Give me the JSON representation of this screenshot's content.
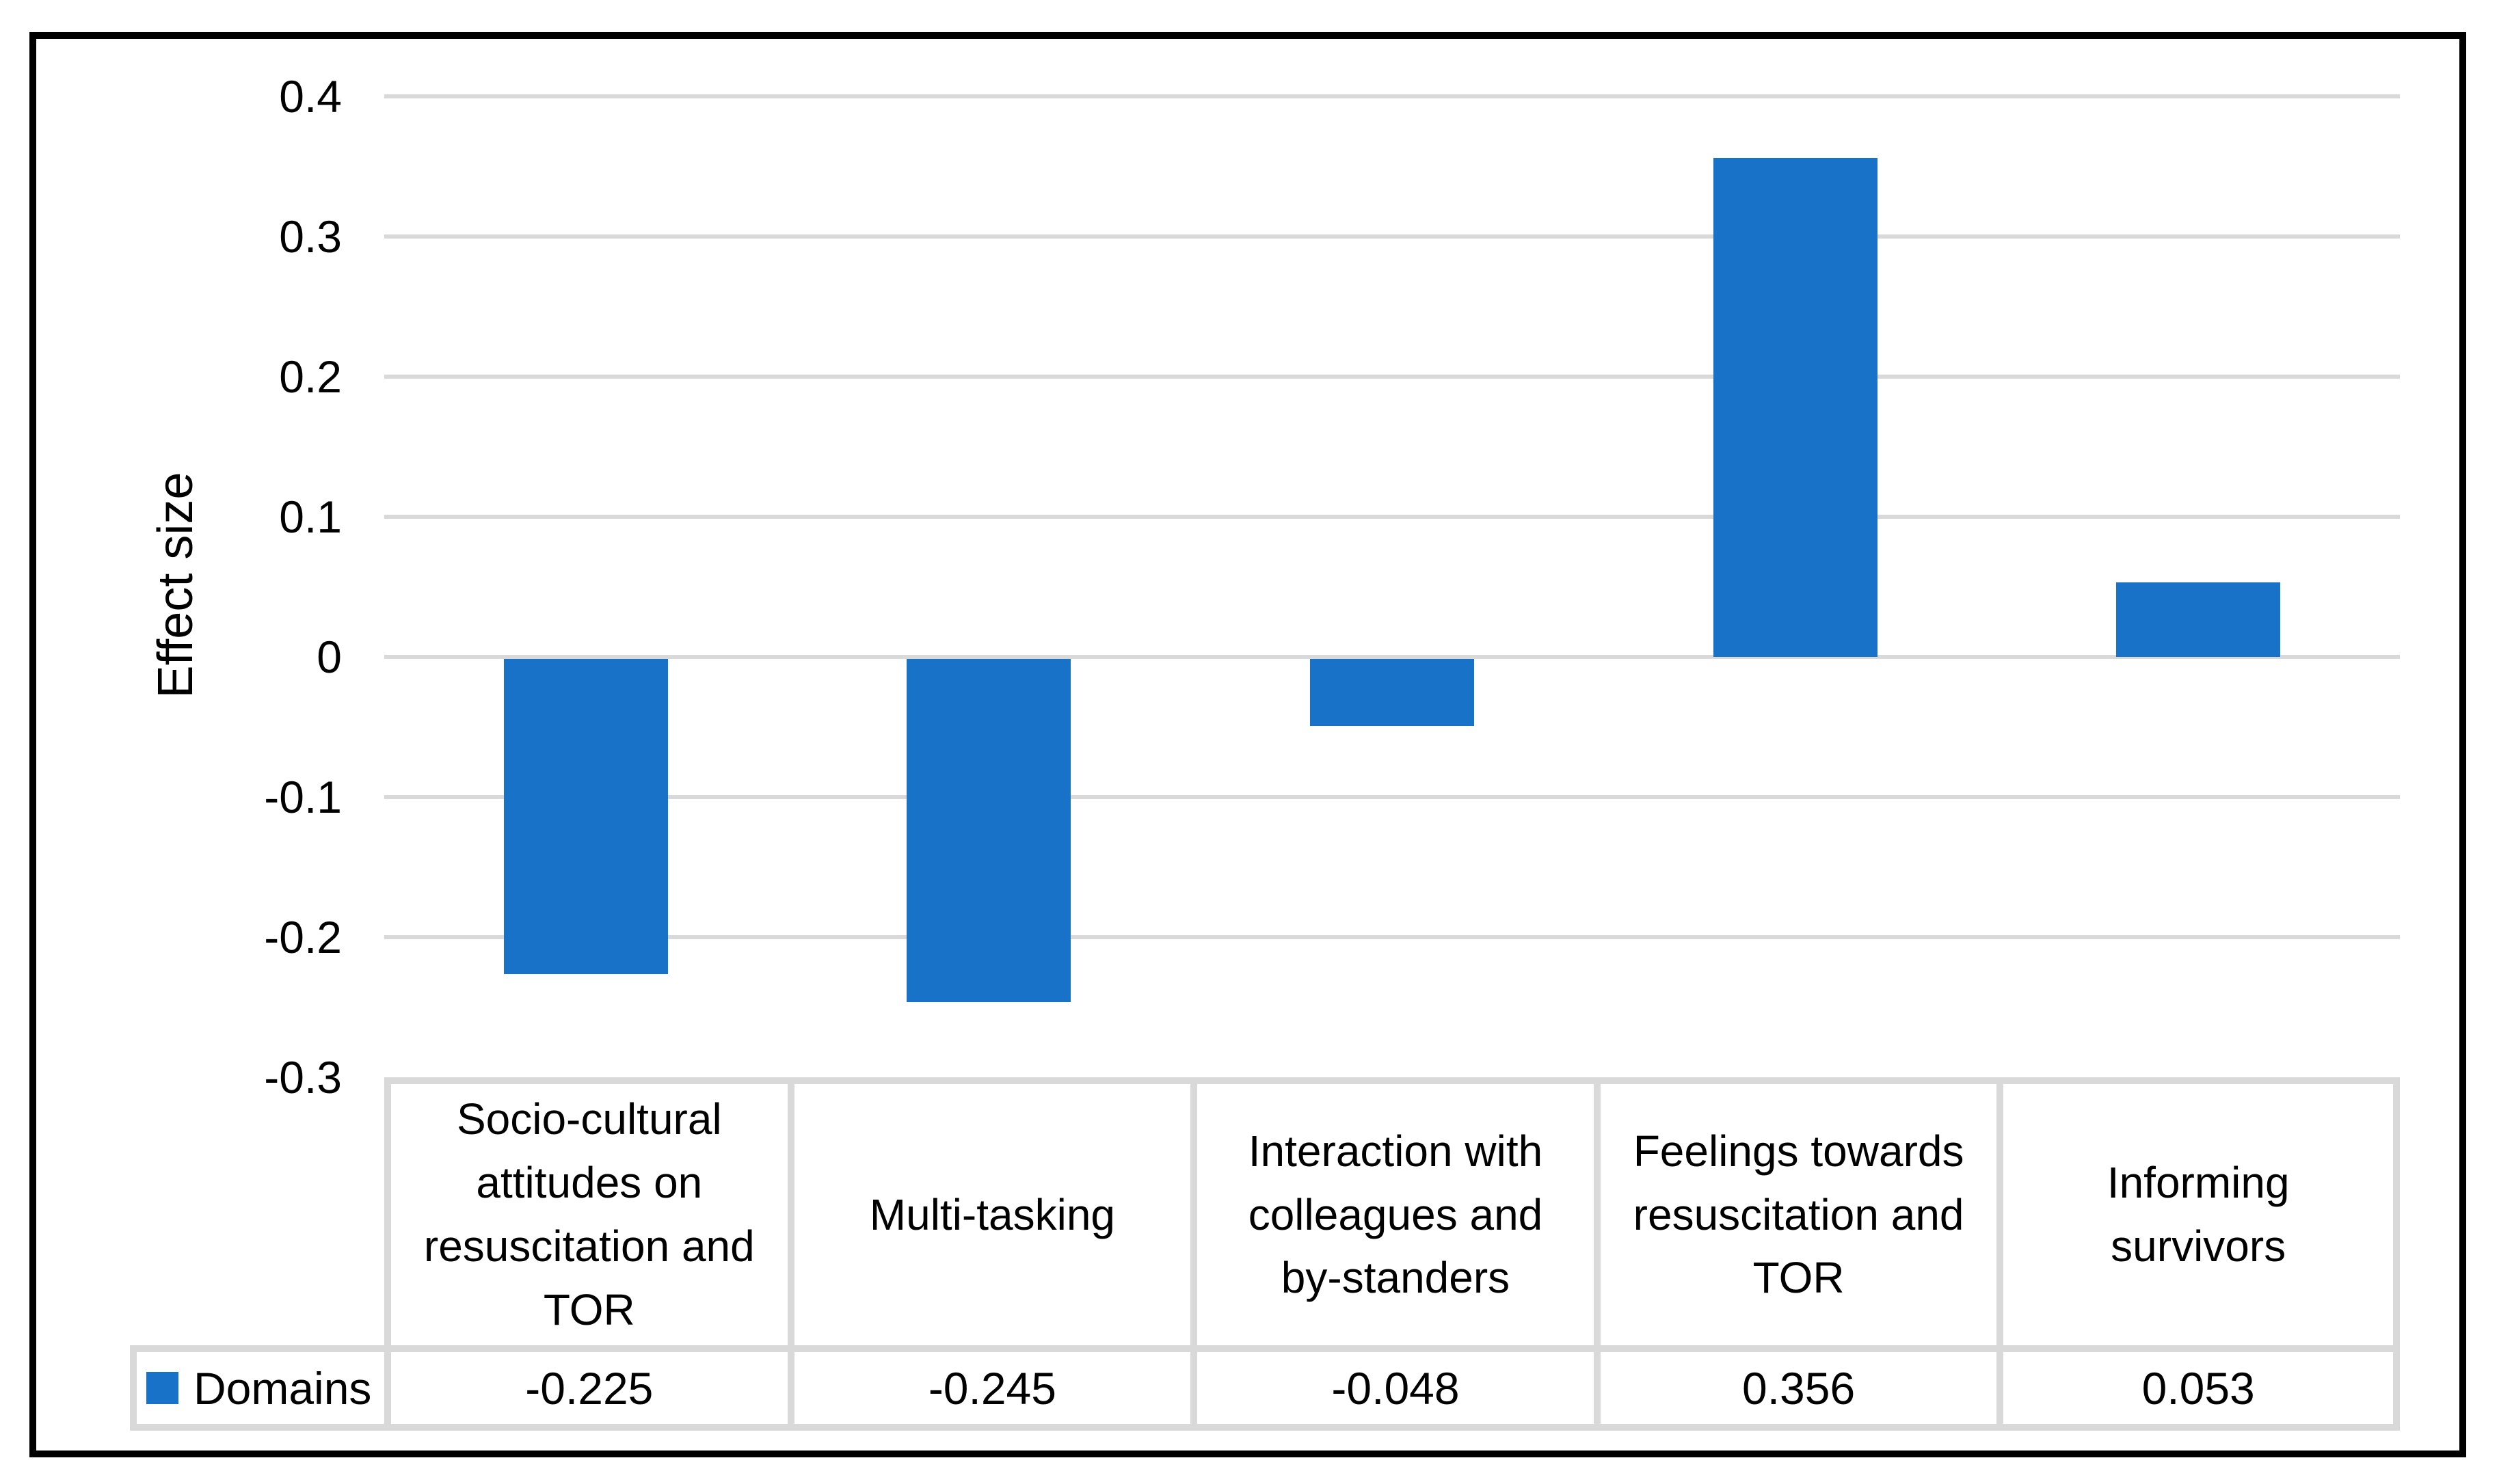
{
  "chart_data": {
    "type": "bar",
    "title": "",
    "xlabel": "",
    "ylabel": "Effect size",
    "categories": [
      "Socio-cultural attitudes on resuscitation and TOR",
      "Multi-tasking",
      "Interaction with colleagues and by-standers",
      "Feelings towards resuscitation and TOR",
      "Informing survivors"
    ],
    "series": [
      {
        "name": "Domains",
        "values": [
          -0.225,
          -0.245,
          -0.048,
          0.356,
          0.053
        ]
      }
    ],
    "value_labels": [
      "-0.225",
      "-0.245",
      "-0.048",
      "0.356",
      "0.053"
    ],
    "yticks": [
      {
        "value": 0.4,
        "label": "0.4"
      },
      {
        "value": 0.3,
        "label": "0.3"
      },
      {
        "value": 0.2,
        "label": "0.2"
      },
      {
        "value": 0.1,
        "label": "0.1"
      },
      {
        "value": 0,
        "label": "0"
      },
      {
        "value": -0.1,
        "label": "-0.1"
      },
      {
        "value": -0.2,
        "label": "-0.2"
      },
      {
        "value": -0.3,
        "label": "-0.3"
      }
    ],
    "ylim": [
      -0.3,
      0.4
    ],
    "grid": true,
    "legend_position": "data-table-left",
    "bar_color": "#1873C8",
    "gridline_color": "#D9D9D9",
    "table_border_color": "#D9D9D9",
    "frame_border_color": "#000000"
  }
}
